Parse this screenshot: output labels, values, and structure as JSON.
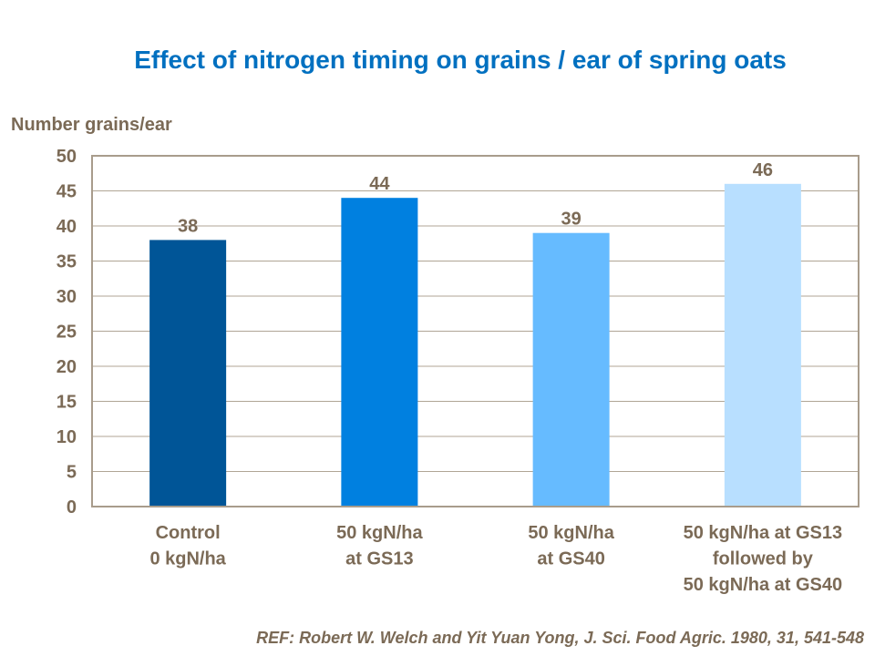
{
  "chart_data": {
    "type": "bar",
    "title": "Effect of nitrogen timing on grains / ear of spring oats",
    "ylabel": "Number grains/ear",
    "xlabel": "",
    "categories": [
      [
        "Control",
        "0 kgN/ha"
      ],
      [
        "50 kgN/ha",
        "at GS13"
      ],
      [
        "50 kgN/ha",
        "at GS40"
      ],
      [
        "50 kgN/ha at GS13",
        "followed by",
        "50 kgN/ha at GS40"
      ]
    ],
    "values": [
      38,
      44,
      39,
      46
    ],
    "data_labels": [
      "38",
      "44",
      "39",
      "46"
    ],
    "colors": [
      "#005597",
      "#0080e0",
      "#66bbff",
      "#b8dfff"
    ],
    "ylim": [
      0,
      50
    ],
    "yticks": [
      0,
      5,
      10,
      15,
      20,
      25,
      30,
      35,
      40,
      45,
      50
    ],
    "grid": true,
    "legend": "none",
    "title_color": "#0070c0",
    "text_color": "#7b6a56"
  },
  "reference": "REF: Robert W. Welch and Yit Yuan Yong, J. Sci. Food Agric. 1980, 31, 541-548"
}
